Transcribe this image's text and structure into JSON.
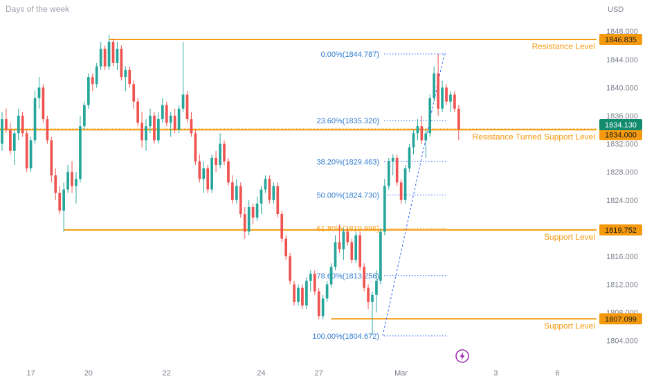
{
  "header": {
    "title": "Days of the week",
    "currency": "USD"
  },
  "colors": {
    "bull": "#26a69a",
    "bear": "#ef5350",
    "level": "#f59a0f",
    "fib": "#2962ff",
    "fib_text": "#2e7bcf",
    "current": "#138b6e",
    "axis_text": "#7a7f8c",
    "bolt": "#9c27b0"
  },
  "chart_data": {
    "type": "candlestick",
    "y_axis": {
      "min": 1802.0,
      "max": 1849.5,
      "ticks": [
        "1804.000",
        "1808.000",
        "1812.000",
        "1816.000",
        "1820.000",
        "1824.000",
        "1828.000",
        "1832.000",
        "1836.000",
        "1840.000",
        "1844.000",
        "1848.000"
      ]
    },
    "x_axis": {
      "labels": [
        {
          "text": "17",
          "index": 7
        },
        {
          "text": "20",
          "index": 21
        },
        {
          "text": "22",
          "index": 40
        },
        {
          "text": "24",
          "index": 63
        },
        {
          "text": "27",
          "index": 77
        },
        {
          "text": "Mar",
          "index": 97
        },
        {
          "text": "3",
          "index": 120
        },
        {
          "text": "6",
          "index": 135
        }
      ],
      "total_slots": 145
    },
    "horizontal_levels": [
      {
        "value": 1846.835,
        "tag": "1846.835",
        "label": "Resistance Level",
        "from_index": 26
      },
      {
        "value": 1834.0,
        "tag": "1834.000",
        "label": "Resistance Turned Support Level",
        "from_index": 0
      },
      {
        "value": 1819.752,
        "tag": "1819.752",
        "label": "Support Level",
        "from_index": 15
      },
      {
        "value": 1807.099,
        "tag": "1807.099",
        "label": "Support Level",
        "from_index": 80
      }
    ],
    "current_price": {
      "value": 1834.13,
      "tag": "1834.130"
    },
    "fibonacci": [
      {
        "ratio": "0.00%",
        "price": "1844.787",
        "value": 1844.787
      },
      {
        "ratio": "23.60%",
        "price": "1835.320",
        "value": 1835.32
      },
      {
        "ratio": "38.20%",
        "price": "1829.463",
        "value": 1829.463
      },
      {
        "ratio": "50.00%",
        "price": "1824.730",
        "value": 1824.73
      },
      {
        "ratio": "61.80%",
        "price": "1819.996",
        "value": 1819.996
      },
      {
        "ratio": "78.60%",
        "price": "1813.256",
        "value": 1813.256
      },
      {
        "ratio": "100.00%",
        "price": "1804.672",
        "value": 1804.672
      }
    ],
    "candles": [
      [
        1832.0,
        1836.5,
        1831.0,
        1835.5
      ],
      [
        1835.5,
        1837.0,
        1833.5,
        1834.0
      ],
      [
        1834.0,
        1835.0,
        1830.5,
        1831.0
      ],
      [
        1831.0,
        1834.0,
        1829.0,
        1833.5
      ],
      [
        1833.5,
        1837.0,
        1832.5,
        1836.0
      ],
      [
        1836.0,
        1836.5,
        1833.0,
        1833.5
      ],
      [
        1833.5,
        1834.0,
        1828.0,
        1828.5
      ],
      [
        1828.5,
        1833.0,
        1828.0,
        1832.5
      ],
      [
        1832.5,
        1839.5,
        1832.0,
        1838.5
      ],
      [
        1838.5,
        1841.5,
        1837.0,
        1840.0
      ],
      [
        1840.0,
        1840.5,
        1835.0,
        1835.5
      ],
      [
        1835.5,
        1836.0,
        1832.0,
        1832.5
      ],
      [
        1832.5,
        1833.0,
        1826.5,
        1827.5
      ],
      [
        1827.5,
        1828.5,
        1824.0,
        1825.0
      ],
      [
        1825.0,
        1826.0,
        1822.0,
        1822.5
      ],
      [
        1822.5,
        1826.5,
        1819.5,
        1825.5
      ],
      [
        1825.5,
        1829.0,
        1825.0,
        1828.0
      ],
      [
        1828.0,
        1829.5,
        1825.0,
        1826.0
      ],
      [
        1826.0,
        1828.0,
        1823.5,
        1827.0
      ],
      [
        1827.0,
        1836.0,
        1826.5,
        1834.5
      ],
      [
        1834.5,
        1838.0,
        1834.0,
        1837.5
      ],
      [
        1837.5,
        1842.0,
        1837.0,
        1841.5
      ],
      [
        1841.5,
        1842.0,
        1839.5,
        1840.5
      ],
      [
        1840.5,
        1843.5,
        1840.0,
        1843.0
      ],
      [
        1843.0,
        1846.5,
        1842.5,
        1845.5
      ],
      [
        1845.5,
        1846.0,
        1842.5,
        1843.0
      ],
      [
        1843.0,
        1847.5,
        1842.5,
        1846.5
      ],
      [
        1846.5,
        1847.0,
        1843.0,
        1843.5
      ],
      [
        1843.5,
        1846.5,
        1842.5,
        1845.5
      ],
      [
        1845.5,
        1846.0,
        1841.0,
        1841.5
      ],
      [
        1841.5,
        1843.0,
        1839.5,
        1842.5
      ],
      [
        1842.5,
        1843.0,
        1840.0,
        1840.5
      ],
      [
        1840.5,
        1841.0,
        1837.0,
        1838.0
      ],
      [
        1838.0,
        1838.5,
        1834.5,
        1835.0
      ],
      [
        1835.0,
        1836.5,
        1831.5,
        1832.5
      ],
      [
        1832.5,
        1835.5,
        1831.0,
        1834.5
      ],
      [
        1834.5,
        1837.0,
        1833.5,
        1836.0
      ],
      [
        1836.0,
        1836.5,
        1832.0,
        1832.5
      ],
      [
        1832.5,
        1836.5,
        1832.0,
        1835.5
      ],
      [
        1835.5,
        1838.5,
        1835.0,
        1837.5
      ],
      [
        1837.5,
        1838.0,
        1834.5,
        1835.0
      ],
      [
        1835.0,
        1836.5,
        1833.0,
        1836.0
      ],
      [
        1836.0,
        1837.0,
        1833.5,
        1834.0
      ],
      [
        1834.0,
        1837.5,
        1833.5,
        1837.0
      ],
      [
        1837.0,
        1846.5,
        1836.5,
        1839.0
      ],
      [
        1839.0,
        1839.5,
        1835.0,
        1835.5
      ],
      [
        1835.5,
        1836.5,
        1833.0,
        1833.5
      ],
      [
        1833.5,
        1834.0,
        1829.0,
        1829.5
      ],
      [
        1829.5,
        1830.5,
        1826.5,
        1827.0
      ],
      [
        1827.0,
        1829.5,
        1825.0,
        1828.5
      ],
      [
        1828.5,
        1829.0,
        1825.0,
        1825.5
      ],
      [
        1825.5,
        1830.5,
        1825.0,
        1830.0
      ],
      [
        1830.0,
        1831.0,
        1828.0,
        1829.0
      ],
      [
        1829.0,
        1833.5,
        1828.5,
        1832.0
      ],
      [
        1832.0,
        1832.5,
        1829.0,
        1829.5
      ],
      [
        1829.5,
        1830.0,
        1826.0,
        1826.5
      ],
      [
        1826.5,
        1827.5,
        1823.5,
        1824.0
      ],
      [
        1824.0,
        1827.0,
        1823.5,
        1826.0
      ],
      [
        1826.0,
        1826.5,
        1821.5,
        1822.0
      ],
      [
        1822.0,
        1823.0,
        1818.5,
        1819.5
      ],
      [
        1819.5,
        1824.0,
        1819.0,
        1823.0
      ],
      [
        1823.0,
        1823.5,
        1820.5,
        1821.5
      ],
      [
        1821.5,
        1824.5,
        1821.0,
        1823.5
      ],
      [
        1823.5,
        1826.0,
        1822.0,
        1825.5
      ],
      [
        1825.5,
        1827.5,
        1825.0,
        1827.0
      ],
      [
        1827.0,
        1827.5,
        1823.5,
        1824.0
      ],
      [
        1824.0,
        1826.5,
        1823.5,
        1826.0
      ],
      [
        1826.0,
        1826.5,
        1821.5,
        1822.0
      ],
      [
        1822.0,
        1822.5,
        1818.0,
        1818.5
      ],
      [
        1818.5,
        1819.0,
        1815.5,
        1816.0
      ],
      [
        1816.0,
        1816.5,
        1812.0,
        1812.5
      ],
      [
        1812.0,
        1812.5,
        1809.0,
        1809.5
      ],
      [
        1809.5,
        1812.0,
        1809.0,
        1811.5
      ],
      [
        1811.5,
        1812.0,
        1808.5,
        1809.0
      ],
      [
        1809.0,
        1813.0,
        1808.5,
        1812.5
      ],
      [
        1812.5,
        1814.0,
        1811.0,
        1813.5
      ],
      [
        1813.5,
        1814.0,
        1810.5,
        1811.0
      ],
      [
        1811.0,
        1811.5,
        1807.0,
        1807.5
      ],
      [
        1807.5,
        1810.5,
        1807.0,
        1810.0
      ],
      [
        1810.0,
        1812.5,
        1809.5,
        1812.0
      ],
      [
        1812.0,
        1815.0,
        1811.5,
        1814.5
      ],
      [
        1814.5,
        1819.0,
        1814.0,
        1818.0
      ],
      [
        1818.0,
        1820.5,
        1816.5,
        1817.0
      ],
      [
        1817.0,
        1820.0,
        1815.5,
        1819.5
      ],
      [
        1819.5,
        1820.0,
        1817.5,
        1818.0
      ],
      [
        1818.0,
        1818.5,
        1815.0,
        1815.5
      ],
      [
        1815.5,
        1819.5,
        1815.0,
        1819.0
      ],
      [
        1819.0,
        1819.5,
        1814.0,
        1814.5
      ],
      [
        1814.5,
        1815.0,
        1811.0,
        1811.5
      ],
      [
        1811.5,
        1812.0,
        1808.5,
        1809.5
      ],
      [
        1809.5,
        1811.0,
        1804.8,
        1810.5
      ],
      [
        1810.5,
        1814.0,
        1808.0,
        1812.5
      ],
      [
        1812.5,
        1820.0,
        1812.0,
        1819.5
      ],
      [
        1819.5,
        1827.0,
        1819.0,
        1826.0
      ],
      [
        1826.0,
        1830.0,
        1825.5,
        1829.5
      ],
      [
        1829.5,
        1830.5,
        1827.5,
        1830.0
      ],
      [
        1830.0,
        1830.5,
        1826.0,
        1826.5
      ],
      [
        1826.5,
        1827.0,
        1823.5,
        1824.0
      ],
      [
        1824.0,
        1829.0,
        1823.5,
        1828.5
      ],
      [
        1828.5,
        1832.0,
        1828.0,
        1831.5
      ],
      [
        1831.5,
        1834.0,
        1830.5,
        1833.5
      ],
      [
        1833.5,
        1835.5,
        1832.5,
        1834.5
      ],
      [
        1834.5,
        1836.0,
        1832.0,
        1832.5
      ],
      [
        1832.5,
        1834.0,
        1830.0,
        1833.5
      ],
      [
        1833.5,
        1839.0,
        1833.0,
        1838.5
      ],
      [
        1838.5,
        1843.0,
        1838.0,
        1842.0
      ],
      [
        1842.0,
        1844.8,
        1836.0,
        1837.0
      ],
      [
        1837.0,
        1841.0,
        1836.5,
        1840.0
      ],
      [
        1840.0,
        1840.5,
        1837.5,
        1838.0
      ],
      [
        1838.0,
        1839.5,
        1836.5,
        1839.0
      ],
      [
        1839.0,
        1839.5,
        1836.5,
        1837.0
      ],
      [
        1837.0,
        1837.5,
        1832.5,
        1834.1
      ]
    ]
  },
  "badge": {
    "icon": "lightning-icon"
  }
}
